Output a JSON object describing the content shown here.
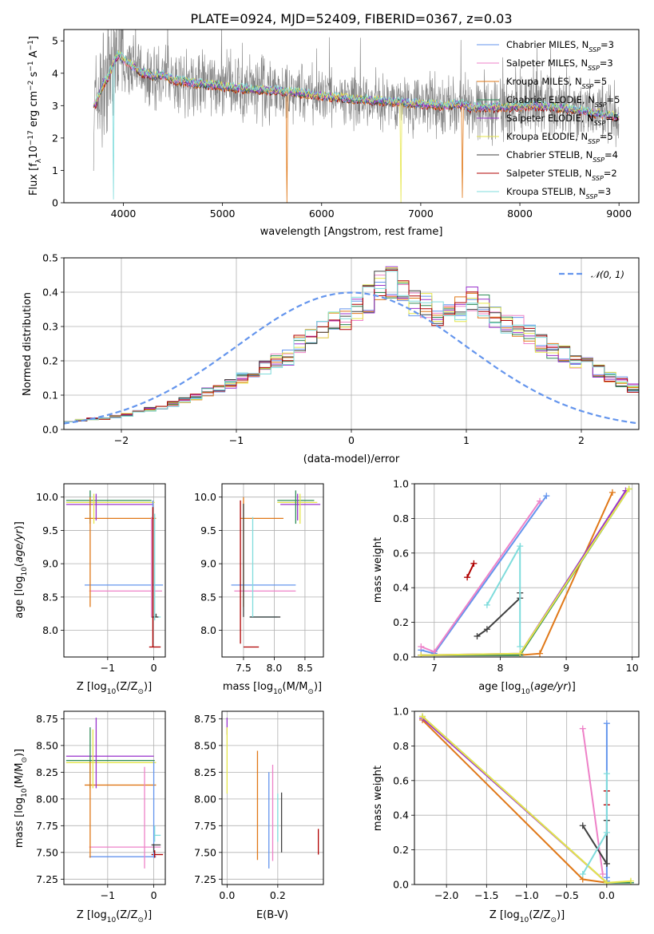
{
  "colors": {
    "chabrier_miles": "#6495ed",
    "salpeter_miles": "#ee82c8",
    "kroupa_miles": "#e07818",
    "chabrier_elodie": "#2e8b57",
    "salpeter_elodie": "#9932cc",
    "kroupa_elodie": "#e6e64a",
    "chabrier_stelib": "#404040",
    "salpeter_stelib": "#b00000",
    "kroupa_stelib": "#7fdcdc",
    "gauss": "#6495ed",
    "spectrum": "#808080"
  },
  "chart_data": [
    {
      "id": "spectrum",
      "type": "line",
      "title": "PLATE=0924, MJD=52409, FIBERID=0367, z=0.03",
      "xlabel": "wavelength [Angstrom, rest frame]",
      "ylabel": "Flux [f",
      "ylabel_sub": "λ",
      "ylabel_mid": "10",
      "ylabel_sup1": "−17",
      "ylabel_mid2": " erg cm",
      "ylabel_sup2": "−2",
      "ylabel_mid3": " s",
      "ylabel_sup3": "−1",
      "ylabel_end": " A",
      "ylabel_sup4": "−1",
      "ylabel_close": "]",
      "xlim": [
        3400,
        9200
      ],
      "ylim": [
        0,
        5.35
      ],
      "xticks": [
        4000,
        5000,
        6000,
        7000,
        8000,
        9000
      ],
      "yticks": [
        0,
        1,
        2,
        3,
        4,
        5
      ],
      "model_anchors": {
        "x": [
          3700,
          3720,
          3800,
          3850,
          3900,
          3950,
          4000,
          4100,
          4200,
          4300,
          4400,
          4500,
          4700,
          5000,
          5300,
          5600,
          6000,
          6300,
          6600,
          7000,
          7300,
          7400,
          7500,
          7800,
          8200,
          8600,
          9000
        ],
        "y": [
          3.1,
          3.05,
          3.7,
          3.9,
          4.3,
          4.6,
          4.4,
          4.2,
          4.0,
          3.9,
          3.95,
          3.8,
          3.7,
          3.6,
          3.5,
          3.45,
          3.3,
          3.2,
          3.15,
          3.05,
          3.0,
          3.05,
          2.95,
          2.95,
          3.0,
          2.85,
          2.65
        ]
      },
      "legend": [
        {
          "name": "Chabrier MILES",
          "nssp": "3",
          "color_key": "chabrier_miles"
        },
        {
          "name": "Salpeter MILES",
          "nssp": "3",
          "color_key": "salpeter_miles"
        },
        {
          "name": "Kroupa MILES",
          "nssp": "5",
          "color_key": "kroupa_miles"
        },
        {
          "name": "Chabrier ELODIE",
          "nssp": "5",
          "color_key": "chabrier_elodie"
        },
        {
          "name": "Salpeter ELODIE",
          "nssp": "5",
          "color_key": "salpeter_elodie"
        },
        {
          "name": "Kroupa ELODIE",
          "nssp": "5",
          "color_key": "kroupa_elodie"
        },
        {
          "name": "Chabrier STELIB",
          "nssp": "4",
          "color_key": "chabrier_stelib"
        },
        {
          "name": "Salpeter STELIB",
          "nssp": "2",
          "color_key": "salpeter_stelib"
        },
        {
          "name": "Kroupa STELIB",
          "nssp": "3",
          "color_key": "kroupa_stelib"
        }
      ],
      "nssp_prefix": "N",
      "nssp_sub": "SSP",
      "nssp_eq": "="
    },
    {
      "id": "residuals",
      "type": "histogram",
      "xlabel": "(data-model)/error",
      "ylabel": "Normed distribution",
      "xlim": [
        -2.5,
        2.5
      ],
      "ylim": [
        0,
        0.5
      ],
      "xticks": [
        -2,
        -1,
        0,
        1,
        2
      ],
      "yticks": [
        0,
        0.1,
        0.2,
        0.3,
        0.4,
        0.5
      ],
      "bin_width": 0.1,
      "legend_label": "𝒩(0, 1)",
      "base": [
        0.025,
        0.027,
        0.03,
        0.033,
        0.038,
        0.043,
        0.05,
        0.058,
        0.065,
        0.075,
        0.085,
        0.095,
        0.11,
        0.12,
        0.135,
        0.15,
        0.165,
        0.18,
        0.2,
        0.21,
        0.25,
        0.27,
        0.29,
        0.31,
        0.32,
        0.35,
        0.38,
        0.42,
        0.43,
        0.41,
        0.37,
        0.36,
        0.34,
        0.33,
        0.35,
        0.38,
        0.36,
        0.33,
        0.31,
        0.3,
        0.28,
        0.25,
        0.23,
        0.22,
        0.2,
        0.19,
        0.17,
        0.15,
        0.14,
        0.12,
        0.1,
        0.09,
        0.08,
        0.07,
        0.06,
        0.05,
        0.045,
        0.04,
        0.035,
        0.03,
        0.027,
        0.025,
        0.023,
        0.021,
        0.02,
        0.019,
        0.018,
        0.017,
        0.016,
        0.015
      ]
    },
    {
      "id": "age_vs_Z",
      "type": "errorbar",
      "xlabel": "Z [log",
      "xlabel_sub": "10",
      "xlabel_rest": "(Z/Z",
      "xlabel_sun": "⊙",
      "xlabel_close": ")]",
      "ylabel": "age  [log",
      "ylabel_sub": "10",
      "ylabel_rest": "(age/yr)]",
      "xlim": [
        -1.95,
        0.25
      ],
      "ylim": [
        7.6,
        10.2
      ],
      "xticks": [
        -1,
        0
      ],
      "yticks": [
        8.0,
        8.5,
        9.0,
        9.5,
        10.0
      ],
      "h": [
        {
          "y": 9.95,
          "x0": -1.9,
          "x1": -0.05,
          "c": "chabrier_elodie"
        },
        {
          "y": 9.92,
          "x0": -1.9,
          "x1": 0.02,
          "c": "kroupa_elodie"
        },
        {
          "y": 9.89,
          "x0": -1.9,
          "x1": -0.02,
          "c": "salpeter_elodie"
        },
        {
          "y": 9.68,
          "x0": -1.5,
          "x1": 0.05,
          "c": "kroupa_miles"
        },
        {
          "y": 8.68,
          "x0": -1.5,
          "x1": 0.2,
          "c": "chabrier_miles"
        },
        {
          "y": 8.59,
          "x0": -1.4,
          "x1": 0.18,
          "c": "salpeter_miles"
        },
        {
          "y": 8.2,
          "x0": -0.05,
          "x1": 0.15,
          "c": "kroupa_stelib"
        },
        {
          "y": 8.2,
          "x0": -0.05,
          "x1": 0.1,
          "c": "chabrier_stelib"
        },
        {
          "y": 7.75,
          "x0": -0.1,
          "x1": 0.15,
          "c": "salpeter_stelib"
        }
      ],
      "v": [
        {
          "x": -1.38,
          "y0": 9.6,
          "y1": 10.1,
          "c": "chabrier_elodie"
        },
        {
          "x": -1.3,
          "y0": 9.6,
          "y1": 10.05,
          "c": "kroupa_elodie"
        },
        {
          "x": -1.25,
          "y0": 9.65,
          "y1": 10.05,
          "c": "salpeter_elodie"
        },
        {
          "x": -1.38,
          "y0": 8.35,
          "y1": 10.0,
          "c": "kroupa_miles"
        },
        {
          "x": -0.02,
          "y0": 8.2,
          "y1": 9.95,
          "c": "chabrier_miles"
        },
        {
          "x": -0.05,
          "y0": 8.2,
          "y1": 9.7,
          "c": "salpeter_miles"
        },
        {
          "x": 0.02,
          "y0": 8.15,
          "y1": 9.75,
          "c": "kroupa_stelib"
        },
        {
          "x": 0.05,
          "y0": 8.2,
          "y1": 8.25,
          "c": "chabrier_stelib"
        },
        {
          "x": -0.02,
          "y0": 7.75,
          "y1": 9.85,
          "c": "salpeter_stelib"
        }
      ]
    },
    {
      "id": "age_vs_mass",
      "type": "errorbar",
      "xlabel": "mass [log",
      "xlabel_sub": "10",
      "xlabel_rest": "(M/M",
      "xlabel_sun": "⊙",
      "xlabel_close": ")]",
      "xlim": [
        7.15,
        8.8
      ],
      "ylim": [
        7.6,
        10.2
      ],
      "xticks": [
        7.5,
        8.0,
        8.5
      ],
      "yticks": [
        8.0,
        8.5,
        9.0,
        9.5,
        10.0
      ],
      "h": [
        {
          "y": 9.95,
          "x0": 8.05,
          "x1": 8.65,
          "c": "chabrier_elodie"
        },
        {
          "y": 9.92,
          "x0": 8.05,
          "x1": 8.7,
          "c": "kroupa_elodie"
        },
        {
          "y": 9.89,
          "x0": 8.1,
          "x1": 8.75,
          "c": "salpeter_elodie"
        },
        {
          "y": 9.68,
          "x0": 7.45,
          "x1": 8.15,
          "c": "kroupa_miles"
        },
        {
          "y": 8.68,
          "x0": 7.3,
          "x1": 8.35,
          "c": "chabrier_miles"
        },
        {
          "y": 8.59,
          "x0": 7.35,
          "x1": 8.35,
          "c": "salpeter_miles"
        },
        {
          "y": 8.2,
          "x0": 7.6,
          "x1": 8.05,
          "c": "kroupa_stelib"
        },
        {
          "y": 8.2,
          "x0": 7.6,
          "x1": 8.1,
          "c": "chabrier_stelib"
        },
        {
          "y": 7.75,
          "x0": 7.5,
          "x1": 7.75,
          "c": "salpeter_stelib"
        }
      ],
      "v": [
        {
          "x": 8.35,
          "y0": 9.6,
          "y1": 10.1,
          "c": "chabrier_elodie"
        },
        {
          "x": 8.42,
          "y0": 9.6,
          "y1": 10.05,
          "c": "kroupa_elodie"
        },
        {
          "x": 8.38,
          "y0": 9.65,
          "y1": 10.05,
          "c": "salpeter_elodie"
        },
        {
          "x": 7.5,
          "y0": 8.35,
          "y1": 10.0,
          "c": "kroupa_miles"
        },
        {
          "x": 7.45,
          "y0": 7.8,
          "y1": 9.95,
          "c": "salpeter_stelib"
        },
        {
          "x": 7.65,
          "y0": 8.2,
          "y1": 9.7,
          "c": "kroupa_stelib"
        },
        {
          "x": 7.5,
          "y0": 8.2,
          "y1": 9.9,
          "c": "chabrier_stelib"
        }
      ]
    },
    {
      "id": "massweight_vs_age",
      "type": "line",
      "ylabel": "mass weight",
      "xlabel": "age  [log",
      "xlabel_sub": "10",
      "xlabel_rest": "(age/yr)]",
      "xlim": [
        6.7,
        10.1
      ],
      "ylim": [
        0,
        1
      ],
      "xticks": [
        7,
        8,
        9,
        10
      ],
      "yticks": [
        0.0,
        0.2,
        0.4,
        0.6,
        0.8,
        1.0
      ],
      "series": [
        {
          "c": "chabrier_miles",
          "x": [
            6.8,
            7.0,
            8.7
          ],
          "y": [
            0.04,
            0.02,
            0.93
          ]
        },
        {
          "c": "salpeter_miles",
          "x": [
            6.8,
            7.0,
            8.6
          ],
          "y": [
            0.06,
            0.03,
            0.9
          ]
        },
        {
          "c": "kroupa_miles",
          "x": [
            6.8,
            8.3,
            8.6,
            9.7
          ],
          "y": [
            0.01,
            0.01,
            0.02,
            0.95
          ]
        },
        {
          "c": "chabrier_elodie",
          "x": [
            6.8,
            8.3,
            9.95
          ],
          "y": [
            0.01,
            0.01,
            0.97
          ]
        },
        {
          "c": "salpeter_elodie",
          "x": [
            6.8,
            8.3,
            9.9
          ],
          "y": [
            0.01,
            0.02,
            0.96
          ]
        },
        {
          "c": "kroupa_elodie",
          "x": [
            6.8,
            8.3,
            9.95
          ],
          "y": [
            0.01,
            0.02,
            0.97
          ]
        },
        {
          "c": "chabrier_stelib",
          "x": [
            7.65,
            7.8,
            8.3,
            8.3
          ],
          "y": [
            0.12,
            0.16,
            0.34,
            0.37
          ]
        },
        {
          "c": "salpeter_stelib",
          "x": [
            7.5,
            7.6
          ],
          "y": [
            0.46,
            0.54
          ]
        },
        {
          "c": "kroupa_stelib",
          "x": [
            7.8,
            8.3,
            8.3
          ],
          "y": [
            0.3,
            0.64,
            0.06
          ]
        }
      ]
    },
    {
      "id": "mass_vs_Z",
      "type": "errorbar",
      "xlabel": "Z [log",
      "xlabel_sub": "10",
      "xlabel_rest": "(Z/Z",
      "xlabel_sun": "⊙",
      "xlabel_close": ")]",
      "ylabel": "mass [log",
      "ylabel_sub": "10",
      "ylabel_rest": "(M/M",
      "ylabel_sun": "⊙",
      "ylabel_close": ")]",
      "xlim": [
        -1.95,
        0.25
      ],
      "ylim": [
        7.2,
        8.82
      ],
      "xticks": [
        -1,
        0
      ],
      "yticks": [
        7.25,
        7.5,
        7.75,
        8.0,
        8.25,
        8.5,
        8.75
      ],
      "h": [
        {
          "y": 8.4,
          "x0": -1.9,
          "x1": 0.0,
          "c": "salpeter_elodie"
        },
        {
          "y": 8.36,
          "x0": -1.9,
          "x1": 0.02,
          "c": "chabrier_elodie"
        },
        {
          "y": 8.34,
          "x0": -1.9,
          "x1": 0.05,
          "c": "kroupa_elodie"
        },
        {
          "y": 8.13,
          "x0": -1.5,
          "x1": 0.05,
          "c": "kroupa_miles"
        },
        {
          "y": 7.66,
          "x0": 0.0,
          "x1": 0.15,
          "c": "kroupa_stelib"
        },
        {
          "y": 7.55,
          "x0": -1.4,
          "x1": 0.15,
          "c": "salpeter_miles"
        },
        {
          "y": 7.57,
          "x0": -0.05,
          "x1": 0.15,
          "c": "chabrier_stelib"
        },
        {
          "y": 7.48,
          "x0": -0.05,
          "x1": 0.2,
          "c": "salpeter_stelib"
        },
        {
          "y": 7.46,
          "x0": -1.4,
          "x1": 0.05,
          "c": "chabrier_miles"
        }
      ],
      "v": [
        {
          "x": -1.38,
          "y0": 8.1,
          "y1": 8.67,
          "c": "chabrier_elodie"
        },
        {
          "x": -1.25,
          "y0": 8.1,
          "y1": 8.76,
          "c": "salpeter_elodie"
        },
        {
          "x": -1.32,
          "y0": 8.1,
          "y1": 8.65,
          "c": "kroupa_elodie"
        },
        {
          "x": -1.38,
          "y0": 7.45,
          "y1": 8.35,
          "c": "kroupa_miles"
        },
        {
          "x": -0.2,
          "y0": 7.35,
          "y1": 8.3,
          "c": "salpeter_miles"
        },
        {
          "x": 0.0,
          "y0": 7.45,
          "y1": 8.35,
          "c": "chabrier_miles"
        },
        {
          "x": 0.02,
          "y0": 7.6,
          "y1": 7.75,
          "c": "kroupa_stelib"
        },
        {
          "x": 0.0,
          "y0": 7.5,
          "y1": 7.58,
          "c": "chabrier_stelib"
        },
        {
          "x": 0.02,
          "y0": 7.45,
          "y1": 7.52,
          "c": "salpeter_stelib"
        }
      ]
    },
    {
      "id": "mass_vs_ebv",
      "type": "errorbar",
      "xlabel": "E(B-V)",
      "xlim": [
        -0.02,
        0.38
      ],
      "ylim": [
        7.2,
        8.82
      ],
      "xticks": [
        0.0,
        0.2
      ],
      "yticks": [
        7.25,
        7.5,
        7.75,
        8.0,
        8.25,
        8.5,
        8.75
      ],
      "v": [
        {
          "x": 0.0,
          "y0": 8.6,
          "y1": 8.76,
          "c": "salpeter_elodie"
        },
        {
          "x": 0.0,
          "y0": 8.05,
          "y1": 8.67,
          "c": "kroupa_elodie"
        },
        {
          "x": 0.12,
          "y0": 7.43,
          "y1": 8.45,
          "c": "kroupa_miles"
        },
        {
          "x": 0.165,
          "y0": 7.35,
          "y1": 8.25,
          "c": "chabrier_miles"
        },
        {
          "x": 0.18,
          "y0": 7.42,
          "y1": 8.32,
          "c": "salpeter_miles"
        },
        {
          "x": 0.2,
          "y0": 7.6,
          "y1": 8.05,
          "c": "kroupa_stelib"
        },
        {
          "x": 0.215,
          "y0": 7.5,
          "y1": 8.06,
          "c": "chabrier_stelib"
        },
        {
          "x": 0.36,
          "y0": 7.48,
          "y1": 7.72,
          "c": "salpeter_stelib"
        }
      ]
    },
    {
      "id": "massweight_vs_Z",
      "type": "line",
      "ylabel": "mass weight",
      "xlabel": "Z [log",
      "xlabel_sub": "10",
      "xlabel_rest": "(Z/Z",
      "xlabel_sun": "⊙",
      "xlabel_close": ")]",
      "xlim": [
        -2.4,
        0.4
      ],
      "ylim": [
        0,
        1
      ],
      "xticks": [
        -2.0,
        -1.5,
        -1.0,
        -0.5,
        0.0
      ],
      "yticks": [
        0.0,
        0.2,
        0.4,
        0.6,
        0.8,
        1.0
      ],
      "series": [
        {
          "c": "chabrier_miles",
          "x": [
            0.0,
            0.0,
            0.0
          ],
          "y": [
            0.02,
            0.04,
            0.93
          ]
        },
        {
          "c": "salpeter_miles",
          "x": [
            -0.05,
            -0.3
          ],
          "y": [
            0.06,
            0.9
          ]
        },
        {
          "c": "kroupa_miles",
          "x": [
            -2.3,
            -0.3,
            0.0
          ],
          "y": [
            0.95,
            0.03,
            0.01
          ]
        },
        {
          "c": "chabrier_elodie",
          "x": [
            -2.3,
            0.0,
            0.3
          ],
          "y": [
            0.97,
            0.01,
            0.01
          ]
        },
        {
          "c": "salpeter_elodie",
          "x": [
            -2.3,
            0.0
          ],
          "y": [
            0.96,
            0.01
          ]
        },
        {
          "c": "kroupa_elodie",
          "x": [
            -2.3,
            0.0,
            0.3
          ],
          "y": [
            0.97,
            0.01,
            0.02
          ]
        },
        {
          "c": "chabrier_stelib",
          "x": [
            -0.3,
            0.0,
            0.0
          ],
          "y": [
            0.34,
            0.12,
            0.37
          ]
        },
        {
          "c": "salpeter_stelib",
          "x": [
            0.0,
            0.0
          ],
          "y": [
            0.46,
            0.54
          ]
        },
        {
          "c": "kroupa_stelib",
          "x": [
            -0.3,
            0.0,
            0.0
          ],
          "y": [
            0.06,
            0.3,
            0.64
          ]
        }
      ]
    }
  ]
}
